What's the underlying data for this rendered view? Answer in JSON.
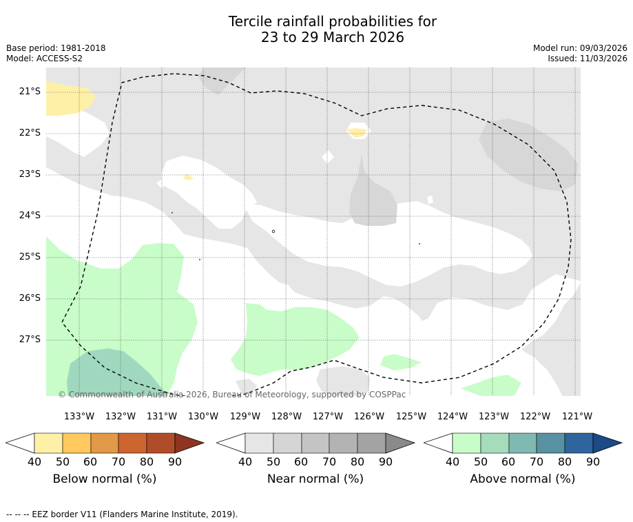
{
  "title": {
    "line1": "Tercile rainfall probabilities for",
    "line2": "23 to 29 March 2026"
  },
  "meta": {
    "base_period": "Base period: 1981-2018",
    "model": "Model: ACCESS-S2",
    "model_run": "Model run: 09/03/2026",
    "issued": "Issued: 11/03/2026"
  },
  "latitude_labels": [
    "21°S",
    "22°S",
    "23°S",
    "24°S",
    "25°S",
    "26°S",
    "27°S"
  ],
  "longitude_labels": [
    "133°W",
    "132°W",
    "131°W",
    "130°W",
    "129°W",
    "128°W",
    "127°W",
    "126°W",
    "125°W",
    "124°W",
    "123°W",
    "122°W",
    "121°W"
  ],
  "copyright": "© Commonwealth of Australia 2026, Bureau of Meteorology, supported by COSPPac",
  "colorbars": {
    "below": {
      "label": "Below normal (%)",
      "colors": [
        "#fff0a8",
        "#ffc95e",
        "#e19848",
        "#cc6430",
        "#b04d28"
      ],
      "extend_color": "#8d3422"
    },
    "near": {
      "label": "Near normal (%)",
      "colors": [
        "#e6e6e6",
        "#d5d5d5",
        "#c4c4c4",
        "#b3b3b3",
        "#a3a3a3"
      ],
      "extend_color": "#8a8a8a"
    },
    "above": {
      "label": "Above normal (%)",
      "colors": [
        "#c8fcc8",
        "#a4dcbc",
        "#80b9b1",
        "#5891a1",
        "#2f649c"
      ],
      "extend_color": "#1c4a86"
    },
    "ticks": [
      "40",
      "50",
      "60",
      "70",
      "80",
      "90"
    ]
  },
  "map_colors": {
    "near_light": "#e6e6e6",
    "near_mid": "#d7d7d7",
    "above_light": "#c8fcc8",
    "above_mid": "#a0d8bf",
    "below_light": "#fff0a8",
    "eez_border": "#000000"
  },
  "footer": "--  --  -- EEZ border V11 (Flanders Marine Institute, 2019)."
}
